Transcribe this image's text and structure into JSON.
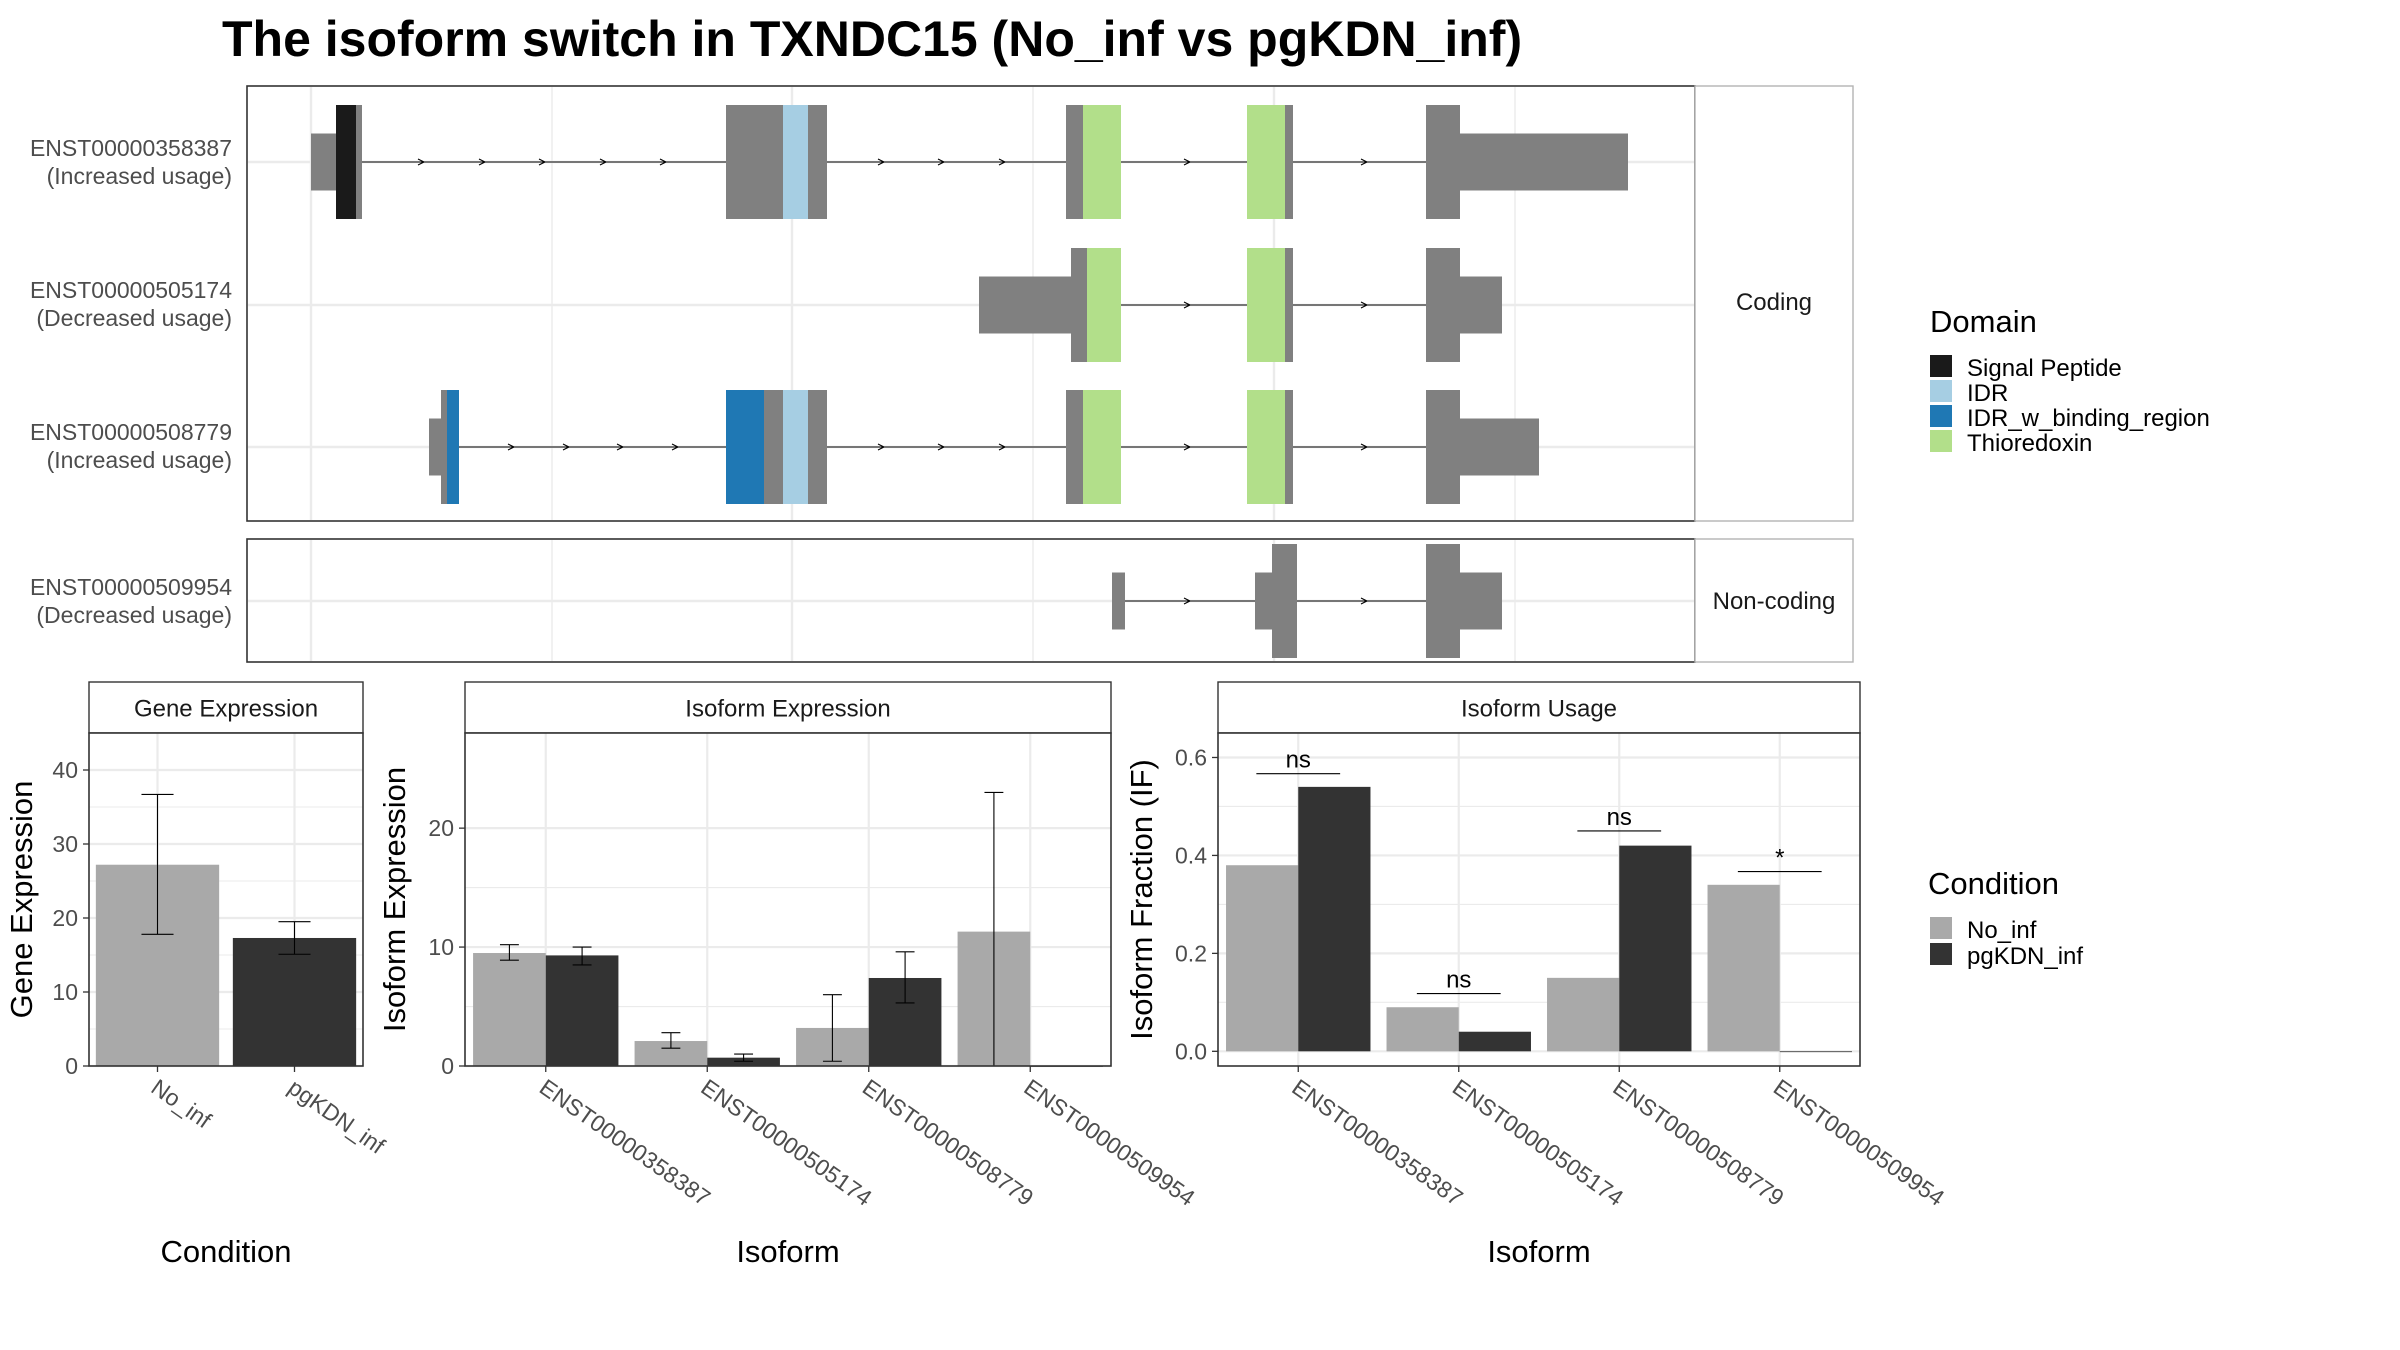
{
  "title": "The isoform switch in TXNDC15 (No_inf vs pgKDN_inf)",
  "colors": {
    "exon": "#808080",
    "no_inf": "#A9A9A9",
    "pgkdn_inf": "#333333",
    "strip_bg": "#ffffff",
    "grid": "#EBEBEB",
    "border": "#333333"
  },
  "transcript_panel": {
    "facets": [
      {
        "label": "Coding",
        "isoforms": [
          {
            "id": "ENST00000358387",
            "usage": "(Increased usage)"
          },
          {
            "id": "ENST00000505174",
            "usage": "(Decreased usage)"
          },
          {
            "id": "ENST00000508779",
            "usage": "(Increased usage)"
          }
        ]
      },
      {
        "label": "Non-coding",
        "isoforms": [
          {
            "id": "ENST00000509954",
            "usage": "(Decreased usage)"
          }
        ]
      }
    ]
  },
  "domain_legend": {
    "title": "Domain",
    "items": [
      {
        "label": "Signal Peptide",
        "color": "#1A1A1A"
      },
      {
        "label": "IDR",
        "color": "#A6CEE3"
      },
      {
        "label": "IDR_w_binding_region",
        "color": "#1F78B4"
      },
      {
        "label": "Thioredoxin",
        "color": "#B2DF8A"
      }
    ]
  },
  "condition_legend": {
    "title": "Condition",
    "items": [
      {
        "label": "No_inf",
        "color": "#A9A9A9"
      },
      {
        "label": "pgKDN_inf",
        "color": "#333333"
      }
    ]
  },
  "chart_data": [
    {
      "type": "bar",
      "title": "Gene Expression",
      "xlabel": "Condition",
      "ylabel": "Gene Expression",
      "categories": [
        "No_inf",
        "pgKDN_inf"
      ],
      "values": [
        27.2,
        17.3
      ],
      "errors": [
        [
          17.8,
          36.7
        ],
        [
          15.1,
          19.5
        ]
      ],
      "ylim": [
        0,
        45
      ],
      "yticks": [
        0,
        10,
        20,
        30,
        40
      ]
    },
    {
      "type": "bar",
      "title": "Isoform Expression",
      "xlabel": "Isoform",
      "ylabel": "Isoform Expression",
      "categories": [
        "ENST00000358387",
        "ENST00000505174",
        "ENST00000508779",
        "ENST00000509954"
      ],
      "series": [
        {
          "name": "No_inf",
          "values": [
            9.5,
            2.1,
            3.2,
            11.3
          ],
          "errors": [
            [
              8.9,
              10.2
            ],
            [
              1.5,
              2.8
            ],
            [
              0.4,
              6.0
            ],
            [
              0.0,
              23.0
            ]
          ]
        },
        {
          "name": "pgKDN_inf",
          "values": [
            9.3,
            0.7,
            7.4,
            0.0
          ],
          "errors": [
            [
              8.5,
              10.0
            ],
            [
              0.4,
              1.0
            ],
            [
              5.3,
              9.6
            ],
            [
              0.0,
              0.0
            ]
          ]
        }
      ],
      "ylim": [
        0,
        28
      ],
      "yticks": [
        0,
        10,
        20
      ]
    },
    {
      "type": "bar",
      "title": "Isoform Usage",
      "xlabel": "Isoform",
      "ylabel": "Isoform Fraction (IF)",
      "categories": [
        "ENST00000358387",
        "ENST00000505174",
        "ENST00000508779",
        "ENST00000509954"
      ],
      "series": [
        {
          "name": "No_inf",
          "values": [
            0.38,
            0.09,
            0.15,
            0.34
          ]
        },
        {
          "name": "pgKDN_inf",
          "values": [
            0.54,
            0.04,
            0.42,
            0.0
          ]
        }
      ],
      "significance": [
        "ns",
        "ns",
        "ns",
        "*"
      ],
      "significance_y": [
        0.567,
        0.118,
        0.45,
        0.367
      ],
      "ylim": [
        -0.03,
        0.65
      ],
      "yticks": [
        0.0,
        0.2,
        0.4,
        0.6
      ]
    }
  ]
}
